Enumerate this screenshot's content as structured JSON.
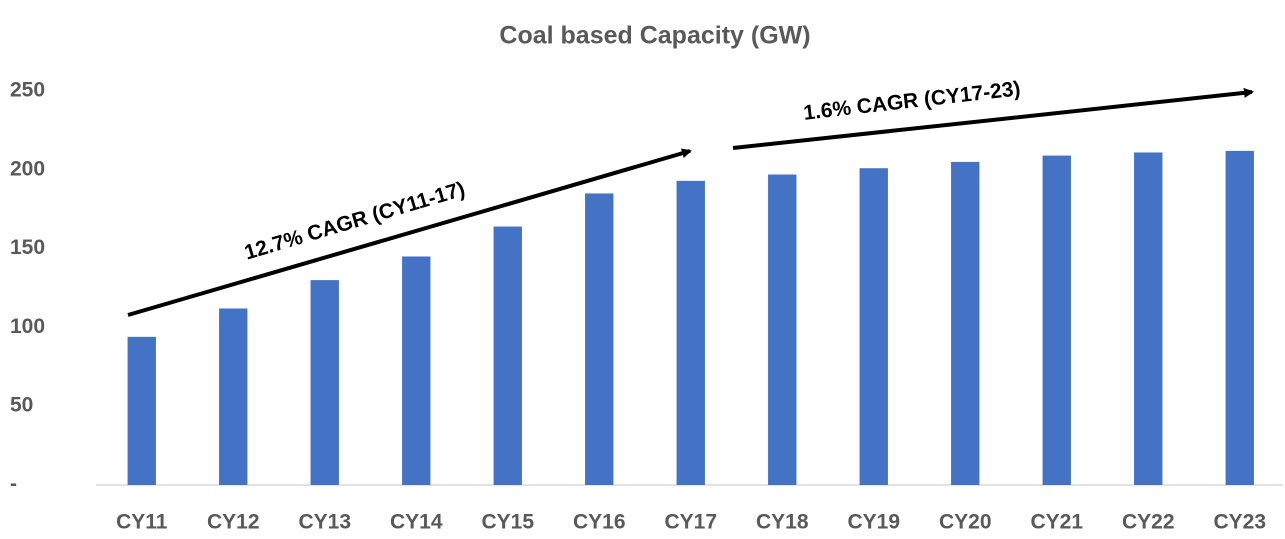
{
  "chart_data": {
    "type": "bar",
    "title": "Coal based Capacity (GW)",
    "categories": [
      "CY11",
      "CY12",
      "CY13",
      "CY14",
      "CY15",
      "CY16",
      "CY17",
      "CY18",
      "CY19",
      "CY20",
      "CY21",
      "CY22",
      "CY23"
    ],
    "values": [
      94,
      112,
      130,
      145,
      164,
      185,
      193,
      197,
      201,
      205,
      209,
      211,
      212
    ],
    "color": "#4472c4",
    "ylim": [
      0,
      250
    ],
    "yticks": [
      {
        "value": 0,
        "label": "-"
      },
      50,
      100,
      150,
      200,
      250
    ],
    "grid": false,
    "annotations": [
      "12.7% CAGR (CY11-17)",
      "1.6% CAGR (CY17-23)"
    ]
  }
}
